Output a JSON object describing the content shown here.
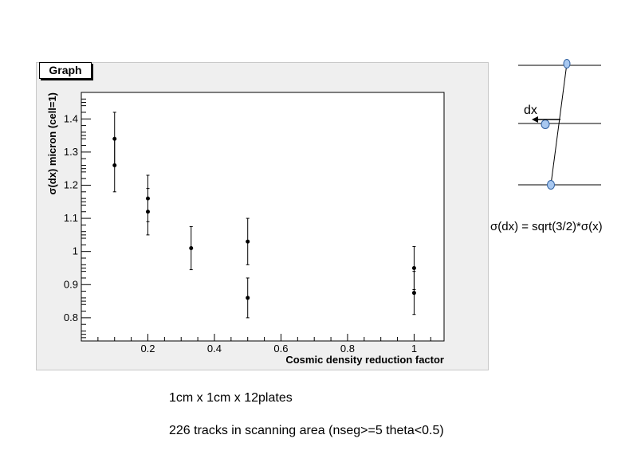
{
  "chart_data": {
    "type": "scatter",
    "title": "Graph",
    "xlabel": "Cosmic density reduction factor",
    "ylabel": "σ(dx) micron (cell=1)",
    "xlim": [
      0,
      1.09
    ],
    "ylim": [
      0.73,
      1.48
    ],
    "x_ticks": [
      0.2,
      0.4,
      0.6,
      0.8,
      1.0
    ],
    "x_tick_labels": [
      "0.2",
      "0.4",
      "0.6",
      "0.8",
      "1"
    ],
    "y_ticks": [
      0.8,
      0.9,
      1.0,
      1.1,
      1.2,
      1.3,
      1.4
    ],
    "y_tick_labels": [
      "0.8",
      "0.9",
      "1",
      "1.1",
      "1.2",
      "1.3",
      "1.4"
    ],
    "grid": false,
    "points": [
      {
        "x": 0.1,
        "y": 1.34,
        "yerr": 0.08
      },
      {
        "x": 0.1,
        "y": 1.26,
        "yerr": 0.08
      },
      {
        "x": 0.2,
        "y": 1.16,
        "yerr": 0.07
      },
      {
        "x": 0.2,
        "y": 1.12,
        "yerr": 0.07
      },
      {
        "x": 0.33,
        "y": 1.01,
        "yerr": 0.065
      },
      {
        "x": 0.5,
        "y": 1.03,
        "yerr": 0.07
      },
      {
        "x": 0.5,
        "y": 0.86,
        "yerr": 0.06
      },
      {
        "x": 1.0,
        "y": 0.95,
        "yerr": 0.065
      },
      {
        "x": 1.0,
        "y": 0.875,
        "yerr": 0.065
      }
    ]
  },
  "diagram": {
    "dx_label": "dx",
    "formula": "σ(dx) = sqrt(3/2)*σ(x)"
  },
  "captions": {
    "line1": "1cm x 1cm x 12plates",
    "line2": "226 tracks in scanning area (nseg>=5 theta<0.5)"
  },
  "colors": {
    "panel_bg": "#efefef",
    "frame_bg": "#ffffff",
    "marker": "#000000",
    "diagram_fill": "#a8c8f0",
    "diagram_stroke": "#3060a0"
  }
}
